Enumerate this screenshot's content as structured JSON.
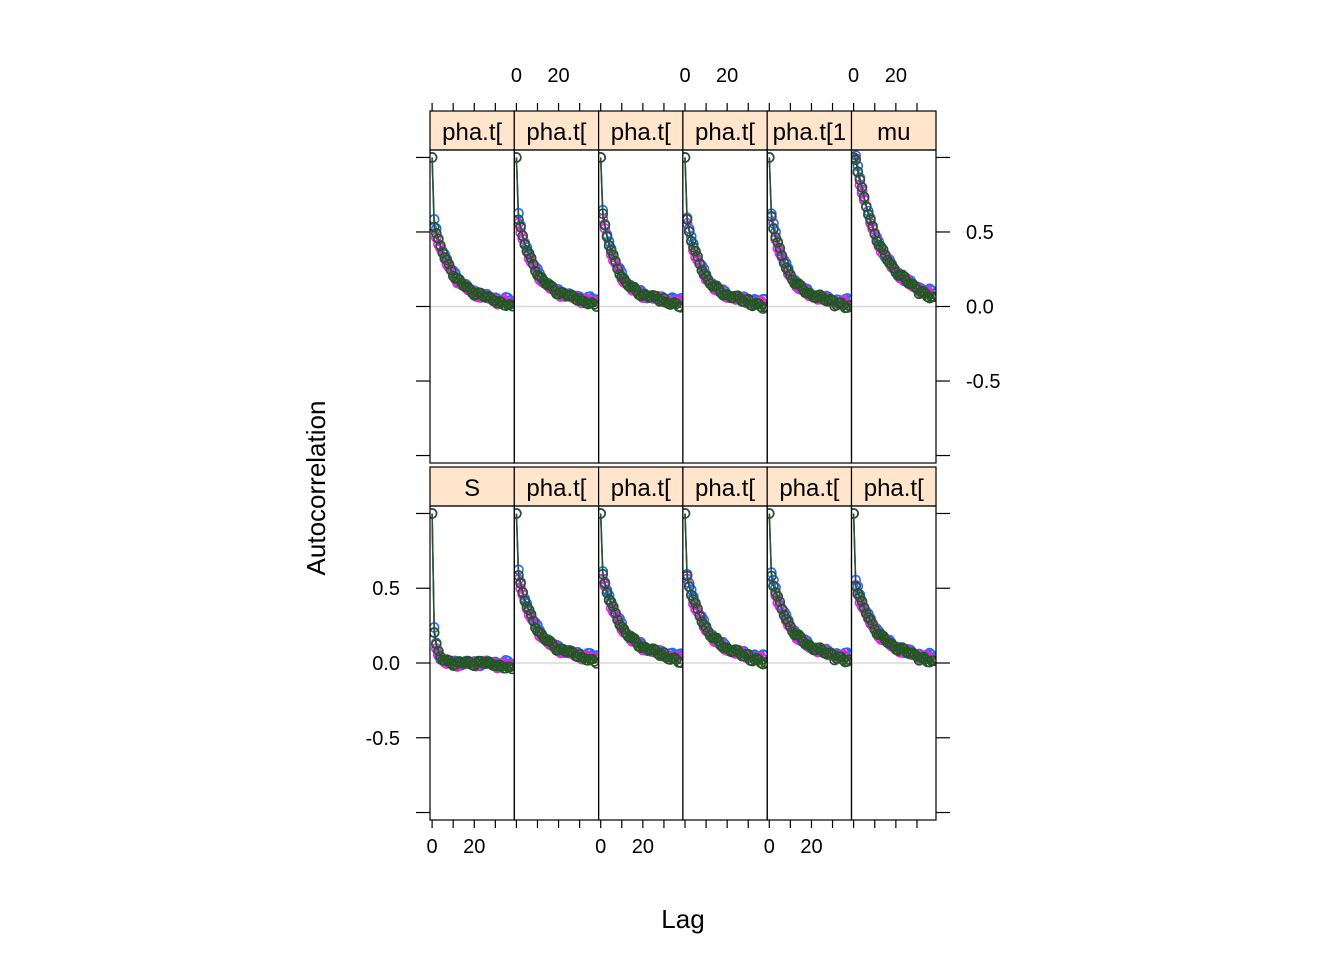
{
  "chart_data": {
    "type": "scatter",
    "xlabel": "Lag",
    "ylabel": "Autocorrelation",
    "xlim": [
      -1,
      39
    ],
    "ylim": [
      -1.05,
      1.05
    ],
    "x_ticks": [
      0,
      10,
      20,
      30,
      40
    ],
    "x_tick_labels": [
      "0",
      "",
      "20",
      "",
      ""
    ],
    "y_ticks": [
      -1.0,
      -0.5,
      0.0,
      0.5,
      1.0
    ],
    "y_tick_labels": [
      "",
      "-0.5",
      "0.0",
      "0.5",
      ""
    ],
    "zero_reference_line": true,
    "chain_colors": [
      "#1a6ef5",
      "#f01ef0",
      "#1e5a1e"
    ],
    "layout": {
      "columns": 6,
      "rows": 2,
      "order": "bottom-row-first"
    },
    "panels": [
      {
        "strip": "S",
        "a": 0.22,
        "b": 0.55,
        "c": 0.0,
        "shift": [
          0.0,
          -0.015,
          0.0
        ]
      },
      {
        "strip": "pha.t[",
        "a": 0.55,
        "b": 0.12,
        "c": 0.04,
        "shift": [
          0.02,
          -0.02,
          0.0
        ]
      },
      {
        "strip": "pha.t[",
        "a": 0.55,
        "b": 0.11,
        "c": 0.04,
        "shift": [
          0.02,
          -0.02,
          0.0
        ]
      },
      {
        "strip": "pha.t[",
        "a": 0.55,
        "b": 0.11,
        "c": 0.03,
        "shift": [
          0.02,
          -0.02,
          0.0
        ]
      },
      {
        "strip": "pha.t[",
        "a": 0.55,
        "b": 0.11,
        "c": 0.04,
        "shift": [
          0.02,
          -0.02,
          0.0
        ]
      },
      {
        "strip": "pha.t[",
        "a": 0.5,
        "b": 0.1,
        "c": 0.03,
        "shift": [
          0.02,
          -0.02,
          0.0
        ]
      },
      {
        "strip": "pha.t[",
        "a": 0.52,
        "b": 0.11,
        "c": 0.03,
        "shift": [
          0.02,
          -0.02,
          0.0
        ]
      },
      {
        "strip": "pha.t[",
        "a": 0.55,
        "b": 0.12,
        "c": 0.04,
        "shift": [
          0.02,
          -0.02,
          0.0
        ]
      },
      {
        "strip": "pha.t[",
        "a": 0.58,
        "b": 0.14,
        "c": 0.04,
        "shift": [
          0.02,
          -0.02,
          0.0
        ]
      },
      {
        "strip": "pha.t[",
        "a": 0.55,
        "b": 0.13,
        "c": 0.03,
        "shift": [
          0.02,
          -0.02,
          0.0
        ]
      },
      {
        "strip": "pha.t[1",
        "a": 0.58,
        "b": 0.13,
        "c": 0.03,
        "shift": [
          0.02,
          -0.02,
          0.0
        ]
      },
      {
        "strip": "mu",
        "a": 0.95,
        "b": 0.085,
        "c": 0.05,
        "shift": [
          0.01,
          -0.02,
          0.0
        ]
      }
    ]
  }
}
